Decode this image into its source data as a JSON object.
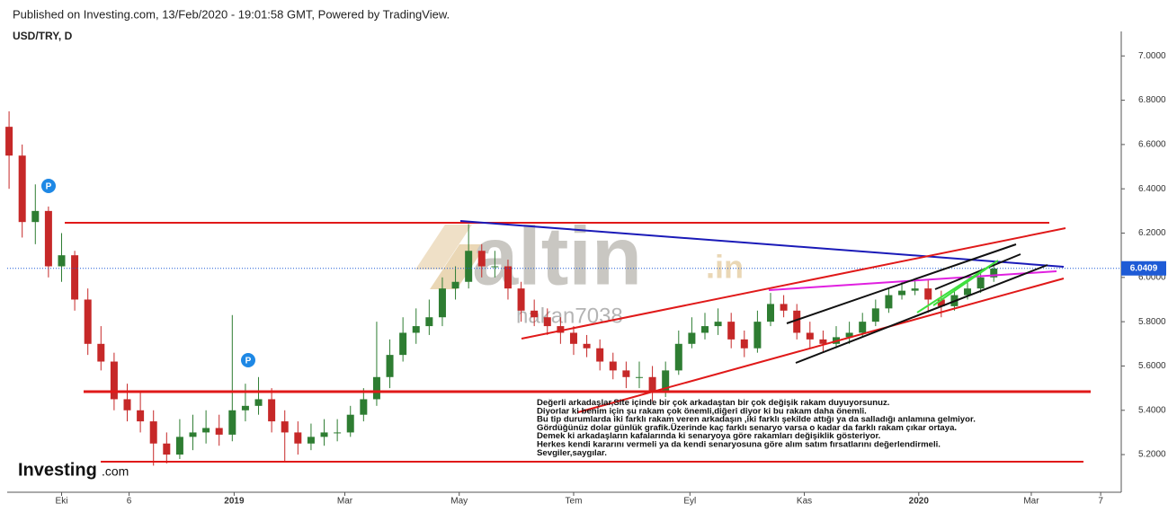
{
  "header": {
    "published": "Published on Investing.com, 13/Feb/2020 - 19:01:58 GMT, Powered by TradingView.",
    "symbol": "USD/TRY, D"
  },
  "chart_data": {
    "type": "candlestick",
    "x": [
      "2018-09-03",
      "2018-09-10",
      "2018-09-17",
      "2018-09-24",
      "2018-10-01",
      "2018-10-08",
      "2018-10-15",
      "2018-10-22",
      "2018-10-29",
      "2018-11-05",
      "2018-11-12",
      "2018-11-19",
      "2018-11-26",
      "2018-12-03",
      "2018-12-10",
      "2018-12-17",
      "2018-12-24",
      "2018-12-31",
      "2019-01-07",
      "2019-01-14",
      "2019-01-21",
      "2019-01-28",
      "2019-02-04",
      "2019-02-11",
      "2019-02-18",
      "2019-02-25",
      "2019-03-04",
      "2019-03-11",
      "2019-03-18",
      "2019-03-25",
      "2019-04-01",
      "2019-04-08",
      "2019-04-15",
      "2019-04-22",
      "2019-04-29",
      "2019-05-06",
      "2019-05-13",
      "2019-05-20",
      "2019-05-27",
      "2019-06-03",
      "2019-06-10",
      "2019-06-17",
      "2019-06-24",
      "2019-07-01",
      "2019-07-08",
      "2019-07-15",
      "2019-07-22",
      "2019-07-29",
      "2019-08-05",
      "2019-08-12",
      "2019-08-19",
      "2019-08-26",
      "2019-09-02",
      "2019-09-09",
      "2019-09-16",
      "2019-09-23",
      "2019-09-30",
      "2019-10-07",
      "2019-10-14",
      "2019-10-21",
      "2019-10-28",
      "2019-11-04",
      "2019-11-11",
      "2019-11-18",
      "2019-11-25",
      "2019-12-02",
      "2019-12-09",
      "2019-12-16",
      "2019-12-23",
      "2019-12-30",
      "2020-01-06",
      "2020-01-13",
      "2020-01-20",
      "2020-01-27",
      "2020-02-03",
      "2020-02-10"
    ],
    "open": [
      6.68,
      6.55,
      6.25,
      6.3,
      6.05,
      6.1,
      5.9,
      5.7,
      5.62,
      5.45,
      5.4,
      5.35,
      5.25,
      5.2,
      5.28,
      5.3,
      5.32,
      5.29,
      5.4,
      5.42,
      5.45,
      5.35,
      5.3,
      5.25,
      5.28,
      5.3,
      5.3,
      5.38,
      5.45,
      5.55,
      5.65,
      5.75,
      5.78,
      5.82,
      5.95,
      5.98,
      6.12,
      6.05,
      6.05,
      5.95,
      5.85,
      5.82,
      5.78,
      5.75,
      5.7,
      5.68,
      5.62,
      5.58,
      5.55,
      5.55,
      5.48,
      5.58,
      5.7,
      5.75,
      5.78,
      5.8,
      5.72,
      5.68,
      5.8,
      5.88,
      5.85,
      5.75,
      5.72,
      5.7,
      5.73,
      5.75,
      5.8,
      5.86,
      5.92,
      5.94,
      5.95,
      5.9,
      5.87,
      5.92,
      5.95,
      6.0
    ],
    "high": [
      6.75,
      6.6,
      6.42,
      6.32,
      6.2,
      6.12,
      5.95,
      5.78,
      5.66,
      5.52,
      5.48,
      5.4,
      5.3,
      5.36,
      5.38,
      5.4,
      5.38,
      5.83,
      5.52,
      5.55,
      5.5,
      5.4,
      5.35,
      5.34,
      5.36,
      5.36,
      5.42,
      5.5,
      5.8,
      5.72,
      5.82,
      5.86,
      5.9,
      6.0,
      6.05,
      6.24,
      6.15,
      6.12,
      6.08,
      5.98,
      5.9,
      5.86,
      5.82,
      5.78,
      5.74,
      5.72,
      5.66,
      5.62,
      5.62,
      5.6,
      5.62,
      5.76,
      5.82,
      5.84,
      5.86,
      5.84,
      5.76,
      5.85,
      5.93,
      5.92,
      5.88,
      5.8,
      5.76,
      5.78,
      5.8,
      5.84,
      5.9,
      5.95,
      5.98,
      5.99,
      5.99,
      5.94,
      5.95,
      5.99,
      6.03,
      6.07
    ],
    "low": [
      6.4,
      6.18,
      6.15,
      6.0,
      5.98,
      5.85,
      5.65,
      5.58,
      5.4,
      5.35,
      5.3,
      5.15,
      5.16,
      5.18,
      5.22,
      5.25,
      5.24,
      5.26,
      5.35,
      5.38,
      5.3,
      5.17,
      5.2,
      5.22,
      5.24,
      5.26,
      5.28,
      5.35,
      5.42,
      5.5,
      5.62,
      5.7,
      5.74,
      5.78,
      5.9,
      5.95,
      6.0,
      6.0,
      5.9,
      5.8,
      5.78,
      5.74,
      5.7,
      5.65,
      5.64,
      5.58,
      5.54,
      5.5,
      5.5,
      5.44,
      5.46,
      5.56,
      5.68,
      5.72,
      5.74,
      5.68,
      5.64,
      5.66,
      5.78,
      5.82,
      5.72,
      5.68,
      5.66,
      5.68,
      5.7,
      5.73,
      5.78,
      5.84,
      5.9,
      5.92,
      5.84,
      5.82,
      5.85,
      5.9,
      5.93,
      5.98
    ],
    "close": [
      6.55,
      6.25,
      6.3,
      6.05,
      6.1,
      5.9,
      5.7,
      5.62,
      5.45,
      5.4,
      5.35,
      5.25,
      5.2,
      5.28,
      5.3,
      5.32,
      5.29,
      5.4,
      5.42,
      5.45,
      5.35,
      5.3,
      5.25,
      5.28,
      5.3,
      5.3,
      5.38,
      5.45,
      5.55,
      5.65,
      5.75,
      5.78,
      5.82,
      5.95,
      5.98,
      6.12,
      6.05,
      6.05,
      5.95,
      5.85,
      5.82,
      5.78,
      5.75,
      5.7,
      5.68,
      5.62,
      5.58,
      5.55,
      5.55,
      5.48,
      5.58,
      5.7,
      5.75,
      5.78,
      5.8,
      5.72,
      5.68,
      5.8,
      5.88,
      5.85,
      5.75,
      5.72,
      5.7,
      5.73,
      5.75,
      5.8,
      5.86,
      5.92,
      5.94,
      5.95,
      5.9,
      5.87,
      5.92,
      5.95,
      6.0,
      6.04
    ],
    "up_color": "#2e7d32",
    "down_color": "#c62828",
    "xlim": [
      "2018-09-02",
      "2020-04-17"
    ],
    "xticks": [
      {
        "value": "2018-10-01",
        "label": "Eki"
      },
      {
        "value": "2018-11-06",
        "label": "6"
      },
      {
        "value": "2019-01-01",
        "label": "2019"
      },
      {
        "value": "2019-03-01",
        "label": "Mar"
      },
      {
        "value": "2019-05-01",
        "label": "May"
      },
      {
        "value": "2019-07-01",
        "label": "Tem"
      },
      {
        "value": "2019-09-01",
        "label": "Eyl"
      },
      {
        "value": "2019-11-01",
        "label": "Kas"
      },
      {
        "value": "2020-01-01",
        "label": "2020"
      },
      {
        "value": "2020-03-01",
        "label": "Mar"
      },
      {
        "value": "2020-04-07",
        "label": "7"
      }
    ],
    "ylim": [
      5.03,
      7.07
    ],
    "yticks": [
      {
        "value": 5.2,
        "label": "5.2000"
      },
      {
        "value": 5.4,
        "label": "5.4000"
      },
      {
        "value": 5.6,
        "label": "5.6000"
      },
      {
        "value": 5.8,
        "label": "5.8000"
      },
      {
        "value": 6.0,
        "label": "6.0000"
      },
      {
        "value": 6.2,
        "label": "6.2000"
      },
      {
        "value": 6.4,
        "label": "6.4000"
      },
      {
        "value": 6.6,
        "label": "6.6000"
      },
      {
        "value": 6.8,
        "label": "6.8000"
      },
      {
        "value": 7.0,
        "label": "7.0000"
      }
    ],
    "last_price": 6.0409,
    "note": [
      "Değerli arkadaşlar,Site içinde bir çok arkadaştan bir çok değişik rakam duyuyorsunuz.",
      "Diyorlar ki benim için şu rakam çok önemli,diğeri diyor ki bu rakam daha önemli.",
      "Bu tip durumlarda iki farklı rakam veren arkadaşın ,iki farklı şekilde attığı ya da salladığı anlamına gelmiyor.",
      "Gördüğünüz dolar günlük grafik.Üzerinde kaç farklı senaryo varsa o kadar da farklı rakam çıkar ortaya.",
      "Demek ki arkadaşların kafalarında ki senaryoya göre rakamları değişiklik gösteriyor.",
      "Herkes kendi kararını vermeli ya da kendi senaryosuna göre alım satım fırsatlarını değerlendirmeli.",
      "Sevgiler,saygılar."
    ],
    "watermark": {
      "main": "altin",
      "suffix": ".in",
      "user": "hakan7038"
    },
    "markers": [
      "P",
      "P"
    ]
  },
  "logo": {
    "main": "Investing",
    "suffix": ".com"
  }
}
